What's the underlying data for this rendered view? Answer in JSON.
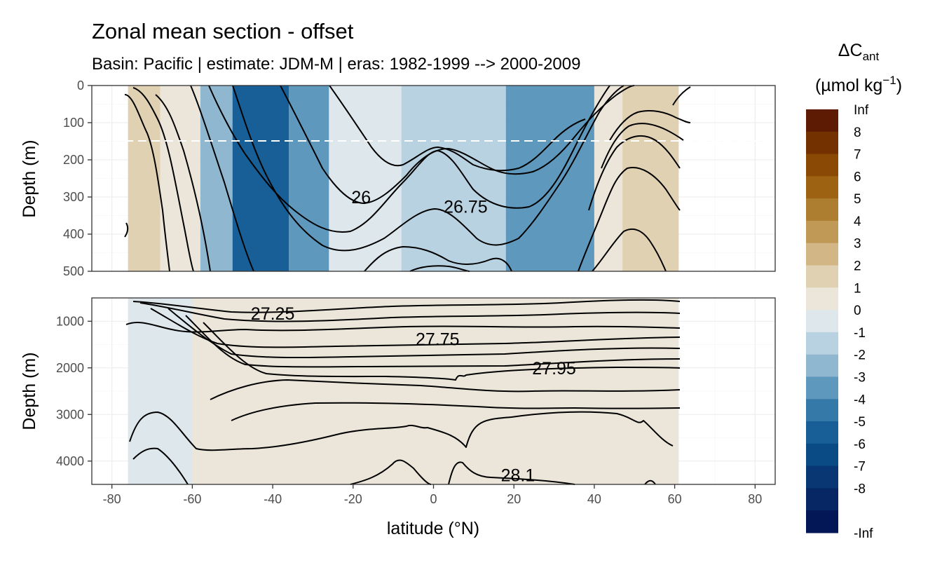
{
  "title": "Zonal mean section - offset",
  "subtitle": "Basin: Pacific | estimate: JDM-M | eras: 1982-1999 --> 2000-2009",
  "chart_data": [
    {
      "type": "heatmap",
      "panel": "upper",
      "ylabel": "Depth (m)",
      "xlim": [
        -85,
        85
      ],
      "ylim": [
        500,
        0
      ],
      "x_ticks": [
        "-80",
        "-60",
        "-40",
        "-20",
        "0",
        "20",
        "40",
        "60",
        "80"
      ],
      "y_ticks": [
        "0",
        "100",
        "200",
        "300",
        "400",
        "500"
      ],
      "mixed_layer_depth_line": 150,
      "contour_labels": [
        {
          "text": "26",
          "lat": -18,
          "depth": 300
        },
        {
          "text": "26.75",
          "lat": 8,
          "depth": 325
        }
      ],
      "bands": [
        {
          "lat0": -76,
          "lat1": -68,
          "class": "2"
        },
        {
          "lat0": -68,
          "lat1": -58,
          "class": "1"
        },
        {
          "lat0": -58,
          "lat1": -50,
          "class": "-2"
        },
        {
          "lat0": -50,
          "lat1": -36,
          "class": "-5"
        },
        {
          "lat0": -36,
          "lat1": -26,
          "class": "-3"
        },
        {
          "lat0": -26,
          "lat1": -8,
          "class": "0"
        },
        {
          "lat0": -8,
          "lat1": 18,
          "class": "-1"
        },
        {
          "lat0": 18,
          "lat1": 40,
          "class": "-3"
        },
        {
          "lat0": 40,
          "lat1": 47,
          "class": "1"
        },
        {
          "lat0": 47,
          "lat1": 61,
          "class": "2"
        }
      ]
    },
    {
      "type": "heatmap",
      "panel": "lower",
      "xlabel": "latitude (°N)",
      "ylabel": "Depth (m)",
      "xlim": [
        -85,
        85
      ],
      "ylim": [
        4500,
        500
      ],
      "y_ticks": [
        "1000",
        "2000",
        "3000",
        "4000"
      ],
      "contour_labels": [
        {
          "text": "27.25",
          "lat": -40,
          "depth": 830
        },
        {
          "text": "27.75",
          "lat": 1,
          "depth": 1380
        },
        {
          "text": "27.95",
          "lat": 30,
          "depth": 2000
        },
        {
          "text": "28.1",
          "lat": 21,
          "depth": 4300
        }
      ],
      "bands": [
        {
          "lat0": -76,
          "lat1": -60,
          "class": "0"
        },
        {
          "lat0": -60,
          "lat1": 61,
          "class": "1"
        }
      ]
    }
  ],
  "legend": {
    "title": "ΔC",
    "title_sub": "ant",
    "units_prefix": "(µmol kg",
    "units_sup": "−1",
    "units_suffix": ")",
    "labels": [
      "Inf",
      "8",
      "7",
      "6",
      "5",
      "4",
      "3",
      "2",
      "1",
      "0",
      "-1",
      "-2",
      "-3",
      "-4",
      "-5",
      "-6",
      "-7",
      "-8",
      "-Inf"
    ],
    "colors": [
      "#5e1b04",
      "#743100",
      "#8a4a05",
      "#9d6312",
      "#ae7e30",
      "#c19957",
      "#d2b685",
      "#e1d1b3",
      "#ece6da",
      "#dde7ec",
      "#b9d2e1",
      "#8fb7d0",
      "#5f98bd",
      "#3579a8",
      "#175f96",
      "#0a4a85",
      "#083773",
      "#062764",
      "#031655"
    ]
  }
}
